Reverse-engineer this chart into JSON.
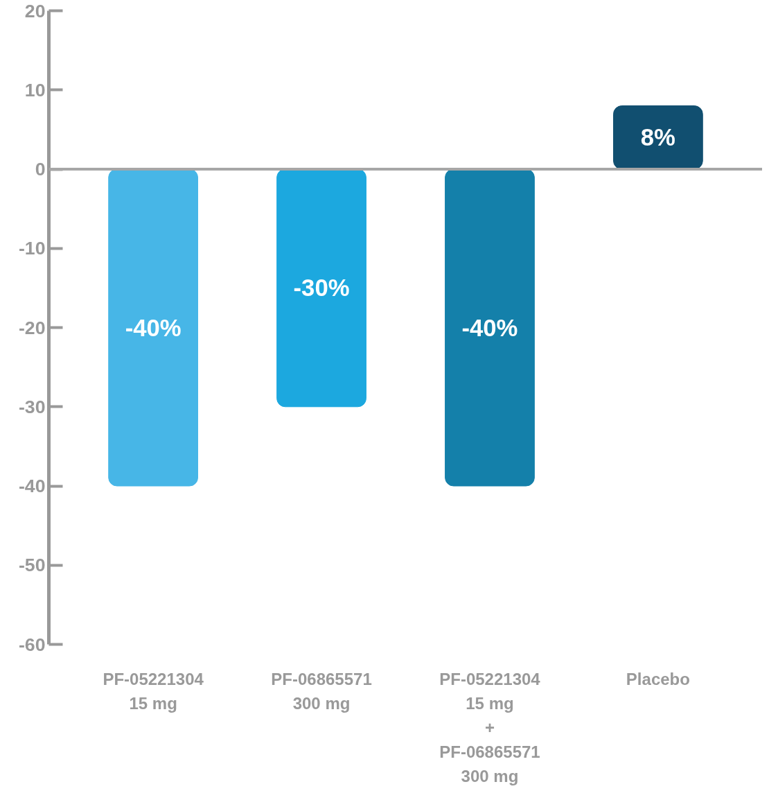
{
  "chart_data": {
    "type": "bar",
    "categories": [
      "PF-05221304\n15 mg",
      "PF-06865571\n300 mg",
      "PF-05221304\n15 mg\n+\nPF-06865571\n300 mg",
      "Placebo"
    ],
    "values": [
      -40,
      -30,
      -40,
      8
    ],
    "colors": [
      "#47b6e7",
      "#1ca8df",
      "#1480aa",
      "#114f70"
    ],
    "value_labels": [
      "-40%",
      "-30%",
      "-40%",
      "8%"
    ],
    "ylim": [
      -60,
      20
    ],
    "yticks": [
      -60,
      -50,
      -40,
      -30,
      -20,
      -10,
      0,
      10,
      20
    ]
  }
}
